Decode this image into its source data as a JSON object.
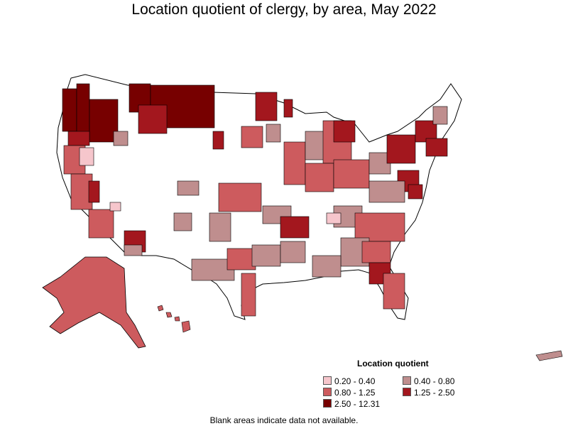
{
  "title": "Location quotient of clergy, by area, May 2022",
  "footnote": "Blank areas indicate data not available.",
  "legend": {
    "title": "Location quotient",
    "items": [
      {
        "label": "0.20 - 0.40",
        "color": "#f6c6cc"
      },
      {
        "label": "0.40 - 0.80",
        "color": "#bf8e8e"
      },
      {
        "label": "0.80 - 1.25",
        "color": "#cd5b5e"
      },
      {
        "label": "1.25 - 2.50",
        "color": "#a3171e"
      },
      {
        "label": "2.50 - 12.31",
        "color": "#770000"
      }
    ]
  },
  "colors": {
    "no_data": "#ffffff",
    "boundary": "#000000"
  }
}
